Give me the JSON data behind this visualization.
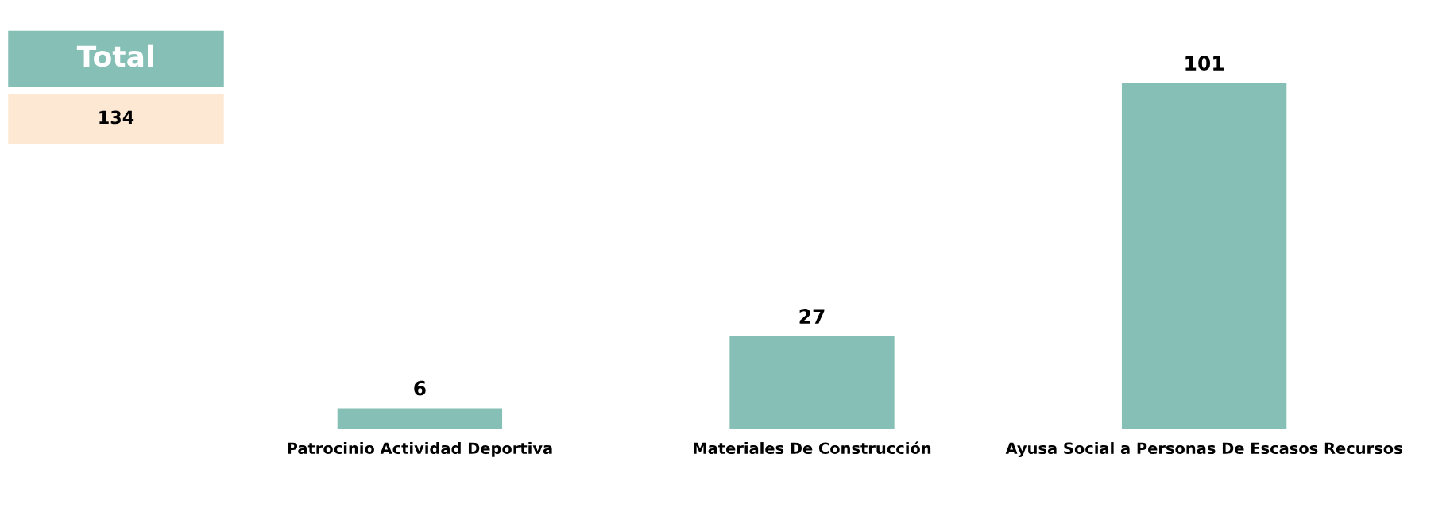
{
  "chart_data": {
    "type": "bar",
    "categories": [
      "Patrocinio Actividad Deportiva",
      "Materiales De Construcción",
      "Ayusa Social a Personas De Escasos Recursos"
    ],
    "values": [
      6,
      27,
      101
    ],
    "color": "#86bfb5",
    "data_labels": true,
    "grid": false,
    "legend": false,
    "annotations": [
      "Total",
      "134"
    ]
  }
}
